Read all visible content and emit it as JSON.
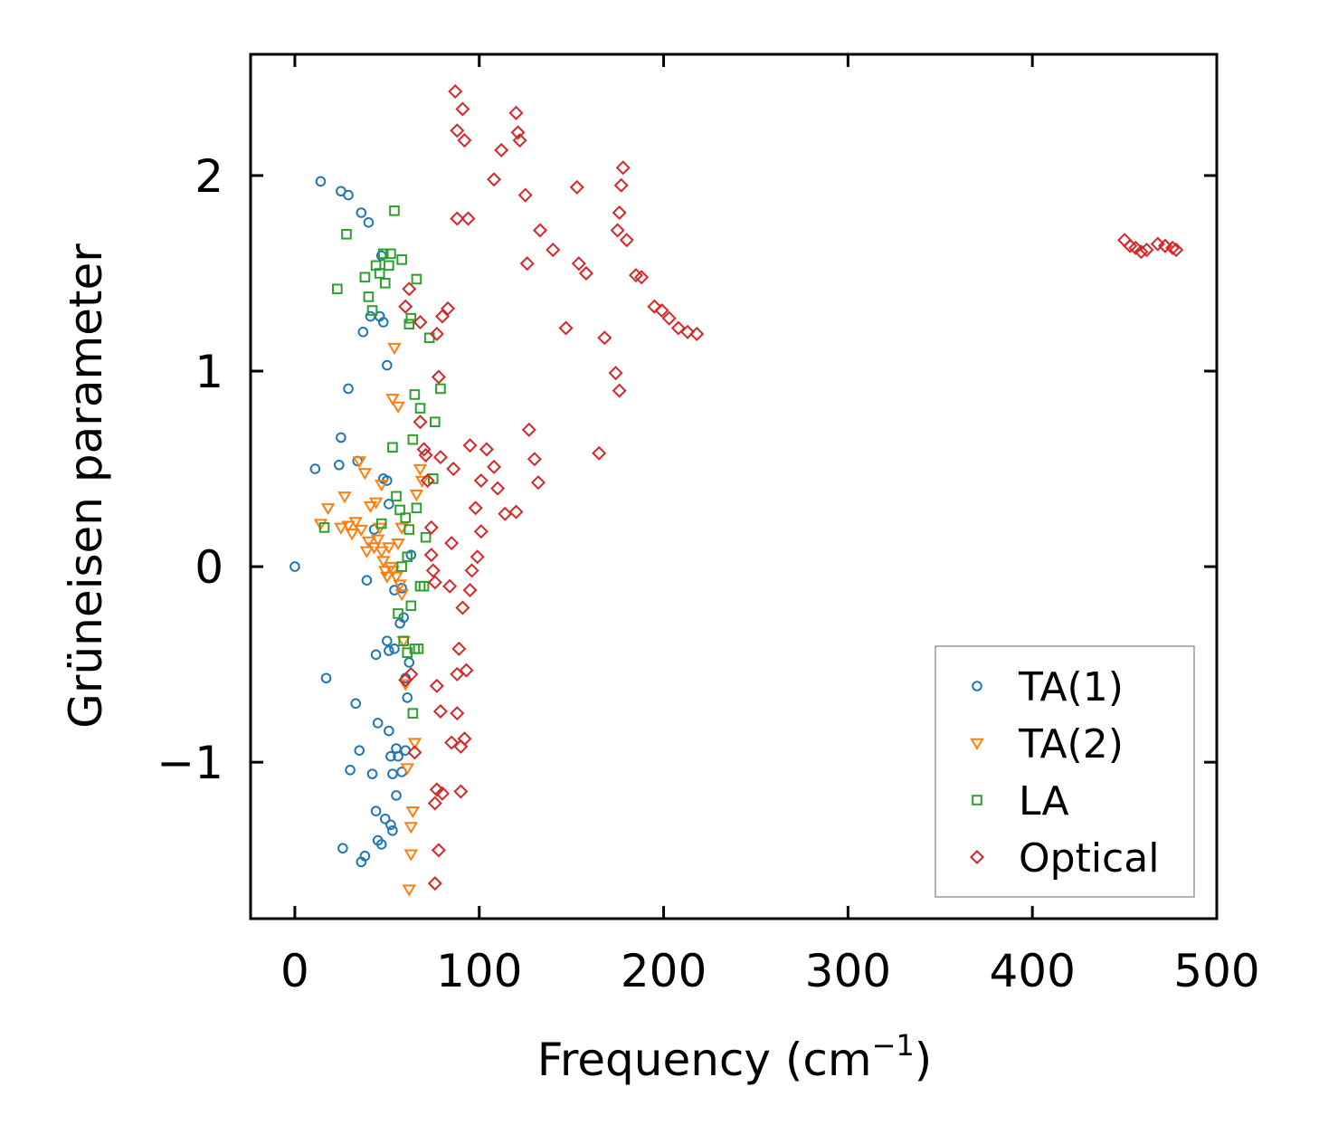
{
  "chart_data": {
    "type": "scatter",
    "title": "",
    "xlabel": "Frequency (cm",
    "xlabel_superscript": "−1",
    "xlabel_suffix": ")",
    "ylabel": "Grüneisen parameter",
    "xlim": [
      -24,
      500
    ],
    "ylim": [
      -1.8,
      2.62
    ],
    "xticks": [
      0,
      100,
      200,
      300,
      400,
      500
    ],
    "xtick_labels": [
      "0",
      "100",
      "200",
      "300",
      "400",
      "500"
    ],
    "yticks": [
      -1,
      0,
      1,
      2
    ],
    "ytick_labels": [
      "−1",
      "0",
      "1",
      "2"
    ],
    "legend_position": "bottom-right",
    "series": [
      {
        "name": "TA(1)",
        "marker": "circle",
        "color": "#1f77b4",
        "points": [
          [
            0,
            0
          ],
          [
            11,
            0.5
          ],
          [
            14,
            1.97
          ],
          [
            17,
            -0.57
          ],
          [
            24,
            0.52
          ],
          [
            25,
            1.92
          ],
          [
            25,
            0.66
          ],
          [
            26,
            -1.44
          ],
          [
            29,
            1.9
          ],
          [
            29,
            0.91
          ],
          [
            30,
            -1.04
          ],
          [
            33,
            -0.7
          ],
          [
            34,
            0.54
          ],
          [
            35,
            -0.94
          ],
          [
            36,
            1.81
          ],
          [
            36,
            -1.51
          ],
          [
            37,
            1.2
          ],
          [
            38,
            -1.48
          ],
          [
            39,
            -0.07
          ],
          [
            40,
            1.76
          ],
          [
            41,
            1.28
          ],
          [
            42,
            -1.06
          ],
          [
            43,
            0.19
          ],
          [
            44,
            -0.45
          ],
          [
            44,
            -1.25
          ],
          [
            45,
            -0.8
          ],
          [
            45,
            -1.4
          ],
          [
            46,
            1.28
          ],
          [
            47,
            1.59
          ],
          [
            47,
            -1.42
          ],
          [
            48,
            1.25
          ],
          [
            48,
            0.45
          ],
          [
            49,
            -1.29
          ],
          [
            50,
            1.03
          ],
          [
            50,
            0.44
          ],
          [
            50,
            -0.38
          ],
          [
            51,
            0.32
          ],
          [
            51,
            -0.43
          ],
          [
            51,
            -0.84
          ],
          [
            52,
            -0.97
          ],
          [
            52,
            -1.32
          ],
          [
            53,
            -1.06
          ],
          [
            53,
            -1.35
          ],
          [
            54,
            -0.12
          ],
          [
            54,
            -0.42
          ],
          [
            55,
            -0.93
          ],
          [
            55,
            -1.17
          ],
          [
            56,
            -0.97
          ],
          [
            57,
            -0.29
          ],
          [
            58,
            -0.11
          ],
          [
            58,
            -1.05
          ],
          [
            59,
            -0.26
          ],
          [
            60,
            -0.94
          ],
          [
            60,
            -0.57
          ],
          [
            61,
            -0.67
          ],
          [
            62,
            -0.49
          ],
          [
            63,
            0.06
          ]
        ]
      },
      {
        "name": "TA(2)",
        "marker": "triangle-down",
        "color": "#ff7f0e",
        "points": [
          [
            14,
            0.22
          ],
          [
            18,
            0.3
          ],
          [
            25,
            0.2
          ],
          [
            27,
            0.36
          ],
          [
            29,
            0.21
          ],
          [
            31,
            0.17
          ],
          [
            33,
            0.23
          ],
          [
            35,
            0.54
          ],
          [
            36,
            0.19
          ],
          [
            38,
            0.48
          ],
          [
            39,
            0.08
          ],
          [
            40,
            0.13
          ],
          [
            41,
            0.31
          ],
          [
            43,
            0.1
          ],
          [
            45,
            0.14
          ],
          [
            46,
            0.2
          ],
          [
            47,
            0.08
          ],
          [
            48,
            0.03
          ],
          [
            49,
            -0.02
          ],
          [
            50,
            -0.05
          ],
          [
            51,
            0.1
          ],
          [
            52,
            0.0
          ],
          [
            53,
            -0.02
          ],
          [
            53,
            0.86
          ],
          [
            54,
            1.12
          ],
          [
            55,
            -0.05
          ],
          [
            56,
            0.82
          ],
          [
            57,
            -0.09
          ],
          [
            58,
            -0.14
          ],
          [
            59,
            -0.38
          ],
          [
            60,
            -0.6
          ],
          [
            61,
            -1.03
          ],
          [
            62,
            -1.65
          ],
          [
            63,
            -1.33
          ],
          [
            63,
            -1.47
          ],
          [
            64,
            -1.25
          ],
          [
            65,
            -0.9
          ],
          [
            66,
            0.37
          ],
          [
            68,
            0.5
          ],
          [
            69,
            0.44
          ],
          [
            56,
            0.12
          ],
          [
            58,
            0.2
          ],
          [
            47,
            0.42
          ],
          [
            44,
            0.33
          ]
        ]
      },
      {
        "name": "LA",
        "marker": "square",
        "color": "#2ca02c",
        "points": [
          [
            16,
            0.2
          ],
          [
            23,
            1.42
          ],
          [
            28,
            1.7
          ],
          [
            38,
            1.48
          ],
          [
            40,
            1.38
          ],
          [
            42,
            1.31
          ],
          [
            44,
            1.54
          ],
          [
            46,
            1.5
          ],
          [
            47,
            0.22
          ],
          [
            48,
            1.6
          ],
          [
            49,
            1.45
          ],
          [
            51,
            1.54
          ],
          [
            52,
            1.6
          ],
          [
            53,
            0.61
          ],
          [
            54,
            1.82
          ],
          [
            55,
            0.36
          ],
          [
            56,
            -0.24
          ],
          [
            57,
            0.29
          ],
          [
            58,
            1.57
          ],
          [
            59,
            -0.38
          ],
          [
            60,
            0.25
          ],
          [
            61,
            -0.44
          ],
          [
            62,
            0.19
          ],
          [
            62,
            1.24
          ],
          [
            63,
            1.27
          ],
          [
            63,
            -0.2
          ],
          [
            64,
            0.65
          ],
          [
            64,
            -0.75
          ],
          [
            65,
            0.88
          ],
          [
            65,
            -0.42
          ],
          [
            66,
            1.47
          ],
          [
            67,
            -0.42
          ],
          [
            68,
            -0.1
          ],
          [
            68,
            0.81
          ],
          [
            70,
            -0.1
          ],
          [
            71,
            0.15
          ],
          [
            73,
            1.17
          ],
          [
            75,
            0.45
          ],
          [
            76,
            0.74
          ],
          [
            79,
            0.91
          ],
          [
            61,
            0.05
          ],
          [
            58,
            0.0
          ],
          [
            66,
            0.3
          ]
        ]
      },
      {
        "name": "Optical",
        "marker": "diamond",
        "color": "#d62728",
        "points": [
          [
            87,
            2.43
          ],
          [
            88,
            2.23
          ],
          [
            91,
            2.34
          ],
          [
            92,
            2.18
          ],
          [
            88,
            1.78
          ],
          [
            94,
            1.78
          ],
          [
            77,
            1.19
          ],
          [
            80,
            1.28
          ],
          [
            83,
            1.32
          ],
          [
            78,
            0.97
          ],
          [
            79,
            0.56
          ],
          [
            71,
            0.57
          ],
          [
            74,
            0.2
          ],
          [
            75,
            -0.02
          ],
          [
            76,
            -0.08
          ],
          [
            77,
            -0.61
          ],
          [
            79,
            -0.74
          ],
          [
            80,
            -1.16
          ],
          [
            78,
            -1.45
          ],
          [
            76,
            -1.62
          ],
          [
            77,
            -1.14
          ],
          [
            76,
            -1.21
          ],
          [
            85,
            -0.9
          ],
          [
            88,
            -0.75
          ],
          [
            90,
            -0.92
          ],
          [
            90,
            -1.15
          ],
          [
            92,
            -0.88
          ],
          [
            93,
            -0.53
          ],
          [
            60,
            -0.58
          ],
          [
            63,
            -0.55
          ],
          [
            65,
            -0.95
          ],
          [
            60,
            1.33
          ],
          [
            62,
            1.42
          ],
          [
            68,
            1.25
          ],
          [
            68,
            0.74
          ],
          [
            70,
            0.6
          ],
          [
            72,
            0.44
          ],
          [
            74,
            0.06
          ],
          [
            120,
            2.32
          ],
          [
            121,
            2.22
          ],
          [
            122,
            2.18
          ],
          [
            125,
            1.9
          ],
          [
            112,
            2.13
          ],
          [
            108,
            1.98
          ],
          [
            126,
            1.55
          ],
          [
            133,
            1.72
          ],
          [
            140,
            1.62
          ],
          [
            147,
            1.22
          ],
          [
            153,
            1.94
          ],
          [
            154,
            1.55
          ],
          [
            158,
            1.5
          ],
          [
            165,
            0.58
          ],
          [
            168,
            1.17
          ],
          [
            174,
            0.99
          ],
          [
            176,
            0.9
          ],
          [
            178,
            2.04
          ],
          [
            177,
            1.95
          ],
          [
            176,
            1.81
          ],
          [
            175,
            1.72
          ],
          [
            180,
            1.67
          ],
          [
            185,
            1.49
          ],
          [
            188,
            1.48
          ],
          [
            195,
            1.33
          ],
          [
            199,
            1.31
          ],
          [
            203,
            1.27
          ],
          [
            208,
            1.22
          ],
          [
            213,
            1.2
          ],
          [
            218,
            1.19
          ],
          [
            450,
            1.67
          ],
          [
            453,
            1.64
          ],
          [
            456,
            1.63
          ],
          [
            459,
            1.61
          ],
          [
            462,
            1.62
          ],
          [
            468,
            1.65
          ],
          [
            472,
            1.64
          ],
          [
            476,
            1.63
          ],
          [
            478,
            1.62
          ],
          [
            127,
            0.7
          ],
          [
            130,
            0.55
          ],
          [
            132,
            0.43
          ],
          [
            120,
            0.28
          ],
          [
            114,
            0.27
          ],
          [
            110,
            0.4
          ],
          [
            108,
            0.51
          ],
          [
            95,
            0.62
          ],
          [
            98,
            0.3
          ],
          [
            101,
            0.44
          ],
          [
            104,
            0.6
          ],
          [
            99,
            0.05
          ],
          [
            95,
            -0.12
          ],
          [
            91,
            -0.21
          ],
          [
            89,
            -0.42
          ],
          [
            88,
            -0.55
          ],
          [
            96,
            -0.02
          ],
          [
            101,
            0.18
          ],
          [
            85,
            0.12
          ],
          [
            84,
            -0.1
          ],
          [
            86,
            0.5
          ]
        ]
      }
    ]
  }
}
